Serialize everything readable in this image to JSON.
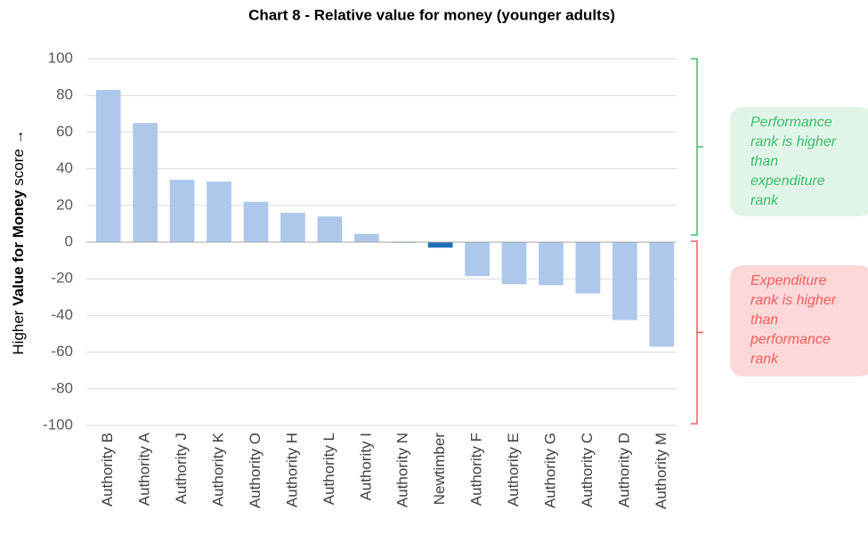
{
  "chart_data": {
    "type": "bar",
    "title": "Chart 8 - Relative value for money (younger adults)",
    "y_label": [
      "Higher ",
      "Value for Money",
      " score →"
    ],
    "categories": [
      "Authority B",
      "Authority A",
      "Authority J",
      "Authority K",
      "Authority O",
      "Authority H",
      "Authority L",
      "Authority I",
      "Authority N",
      "Newtimber",
      "Authority F",
      "Authority E",
      "Authority G",
      "Authority C",
      "Authority D",
      "Authority M"
    ],
    "values": [
      83,
      65,
      34,
      33,
      22,
      16,
      14,
      4.5,
      -0.5,
      -3,
      -18.5,
      -23,
      -23.5,
      -28,
      -42.5,
      -57
    ],
    "colors": [
      "#aec8ec",
      "#aec8ec",
      "#aec8ec",
      "#aec8ec",
      "#aec8ec",
      "#aec8ec",
      "#aec8ec",
      "#aec8ec",
      "#aec8ec",
      "#1f70b9",
      "#aec8ec",
      "#aec8ec",
      "#aec8ec",
      "#aec8ec",
      "#aec8ec",
      "#aec8ec"
    ],
    "ylim": [
      -100,
      100
    ],
    "yticks": [
      -100,
      -80,
      -60,
      -40,
      -20,
      0,
      20,
      40,
      60,
      80,
      100
    ],
    "grid": true,
    "annotations": [
      {
        "lines": [
          "Performance",
          "rank is higher",
          "than",
          "expenditure",
          "rank"
        ],
        "color": "#3dbb6b",
        "fill": "#e0f5e8"
      },
      {
        "lines": [
          "Expenditure",
          "rank is higher",
          "than",
          "performance",
          "rank"
        ],
        "color": "#f25c5c",
        "fill": "#fdd8d8"
      }
    ]
  }
}
